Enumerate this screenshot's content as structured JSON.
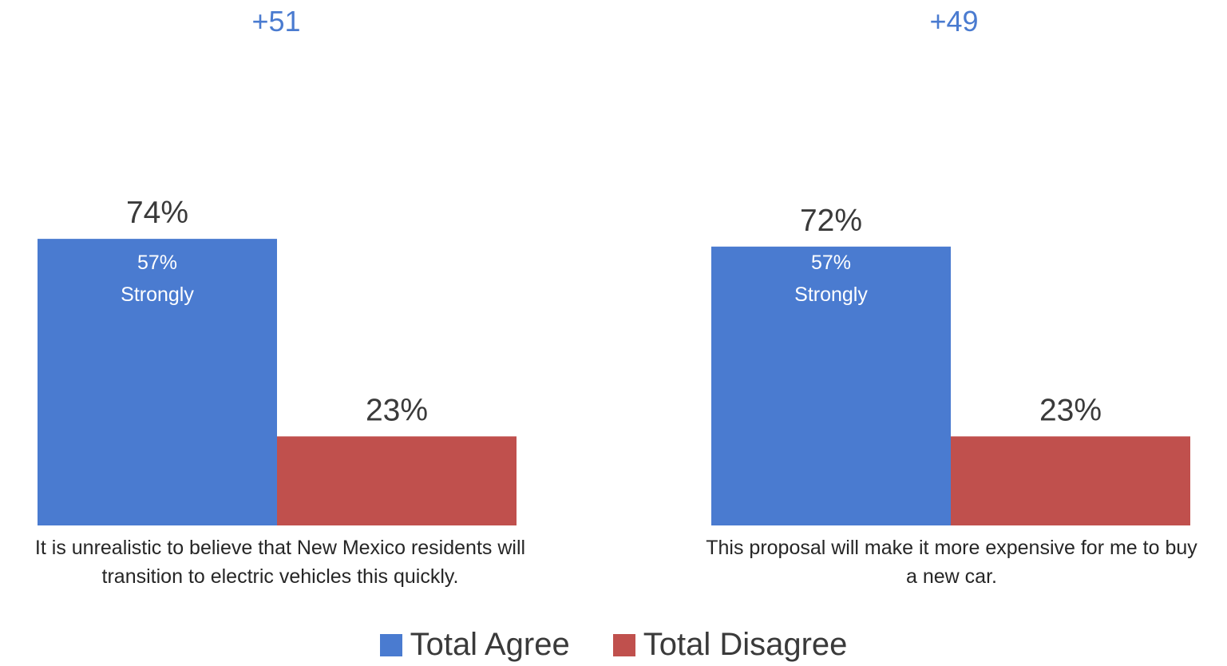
{
  "chart_data": {
    "type": "bar",
    "categories": [
      "It is unrealistic to believe that New Mexico residents will transition to electric vehicles this quickly.",
      "This proposal will make it more expensive for me to buy a new car."
    ],
    "series": [
      {
        "name": "Total Agree",
        "color": "#4a7bd0",
        "values": [
          74,
          72
        ],
        "labels": [
          "74%",
          "72%"
        ],
        "inner_labels": [
          {
            "value": "57%",
            "text": "Strongly"
          },
          {
            "value": "57%",
            "text": "Strongly"
          }
        ]
      },
      {
        "name": "Total Disagree",
        "color": "#c0504d",
        "values": [
          23,
          23
        ],
        "labels": [
          "23%",
          "23%"
        ]
      }
    ],
    "net_labels": [
      "+51",
      "+49"
    ],
    "ylim": [
      0,
      100
    ],
    "grid": false,
    "legend_position": "bottom"
  }
}
